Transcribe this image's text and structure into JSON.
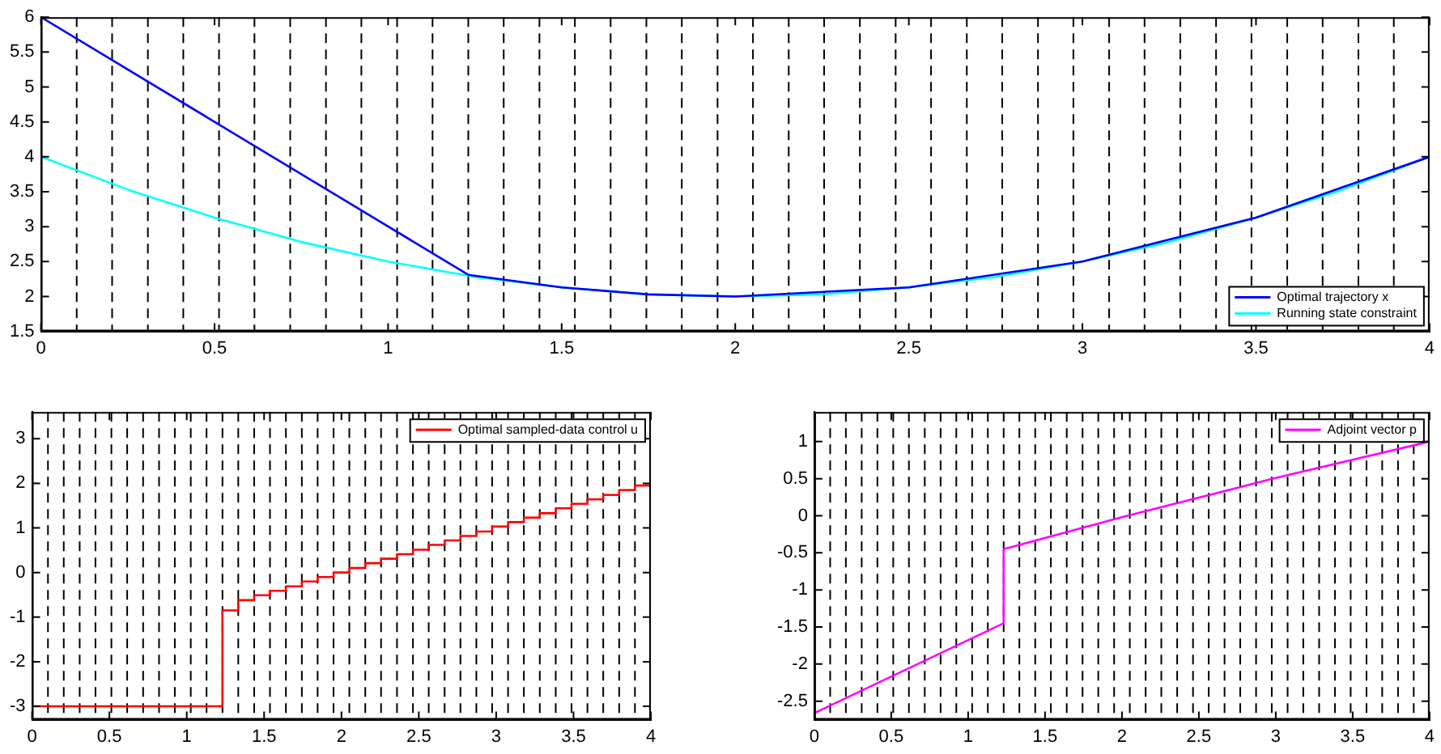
{
  "chart_data": [
    {
      "type": "line",
      "xlim": [
        0,
        4
      ],
      "ylim": [
        1.5,
        6
      ],
      "xticks": [
        0,
        0.5,
        1,
        1.5,
        2,
        2.5,
        3,
        3.5,
        4
      ],
      "yticks": [
        1.5,
        2,
        2.5,
        3,
        3.5,
        4,
        4.5,
        5,
        5.5,
        6
      ],
      "grid": false,
      "legend": "bottom right",
      "marker": "none",
      "line_style": "solid",
      "series": [
        {
          "name": "Optimal trajectory x",
          "color": "#0000ff",
          "x": [
            0,
            1.231,
            1.5,
            1.75,
            2,
            2.5,
            3,
            3.5,
            4
          ],
          "values": [
            6,
            2.31,
            2.13,
            2.03,
            2,
            2.13,
            2.5,
            3.13,
            4
          ]
        },
        {
          "name": "Running state constraint",
          "color": "#00ffff",
          "x": [
            0,
            0.25,
            0.5,
            0.75,
            1,
            1.25,
            1.5,
            1.75,
            2,
            2.25,
            2.5,
            2.75,
            3,
            3.25,
            3.5,
            3.75,
            4
          ],
          "values": [
            4,
            3.53,
            3.13,
            2.78,
            2.5,
            2.28,
            2.13,
            2.03,
            2,
            2.03,
            2.13,
            2.28,
            2.5,
            2.78,
            3.13,
            3.53,
            4
          ]
        }
      ],
      "ref_lines": [
        {
          "axis": "x",
          "value": 0.103,
          "line_style": "dashed"
        },
        {
          "axis": "x",
          "value": 0.205,
          "line_style": "dashed"
        },
        {
          "axis": "x",
          "value": 0.308,
          "line_style": "dashed"
        },
        {
          "axis": "x",
          "value": 0.41,
          "line_style": "dashed"
        },
        {
          "axis": "x",
          "value": 0.513,
          "line_style": "dashed"
        },
        {
          "axis": "x",
          "value": 0.615,
          "line_style": "dashed"
        },
        {
          "axis": "x",
          "value": 0.718,
          "line_style": "dashed"
        },
        {
          "axis": "x",
          "value": 0.821,
          "line_style": "dashed"
        },
        {
          "axis": "x",
          "value": 0.923,
          "line_style": "dashed"
        },
        {
          "axis": "x",
          "value": 1.026,
          "line_style": "dashed"
        },
        {
          "axis": "x",
          "value": 1.128,
          "line_style": "dashed"
        },
        {
          "axis": "x",
          "value": 1.231,
          "line_style": "dashed"
        },
        {
          "axis": "x",
          "value": 1.333,
          "line_style": "dashed"
        },
        {
          "axis": "x",
          "value": 1.436,
          "line_style": "dashed"
        },
        {
          "axis": "x",
          "value": 1.538,
          "line_style": "dashed"
        },
        {
          "axis": "x",
          "value": 1.641,
          "line_style": "dashed"
        },
        {
          "axis": "x",
          "value": 1.744,
          "line_style": "dashed"
        },
        {
          "axis": "x",
          "value": 1.846,
          "line_style": "dashed"
        },
        {
          "axis": "x",
          "value": 1.949,
          "line_style": "dashed"
        },
        {
          "axis": "x",
          "value": 2.051,
          "line_style": "dashed"
        },
        {
          "axis": "x",
          "value": 2.154,
          "line_style": "dashed"
        },
        {
          "axis": "x",
          "value": 2.256,
          "line_style": "dashed"
        },
        {
          "axis": "x",
          "value": 2.359,
          "line_style": "dashed"
        },
        {
          "axis": "x",
          "value": 2.462,
          "line_style": "dashed"
        },
        {
          "axis": "x",
          "value": 2.564,
          "line_style": "dashed"
        },
        {
          "axis": "x",
          "value": 2.667,
          "line_style": "dashed"
        },
        {
          "axis": "x",
          "value": 2.769,
          "line_style": "dashed"
        },
        {
          "axis": "x",
          "value": 2.872,
          "line_style": "dashed"
        },
        {
          "axis": "x",
          "value": 2.974,
          "line_style": "dashed"
        },
        {
          "axis": "x",
          "value": 3.077,
          "line_style": "dashed"
        },
        {
          "axis": "x",
          "value": 3.179,
          "line_style": "dashed"
        },
        {
          "axis": "x",
          "value": 3.282,
          "line_style": "dashed"
        },
        {
          "axis": "x",
          "value": 3.385,
          "line_style": "dashed"
        },
        {
          "axis": "x",
          "value": 3.487,
          "line_style": "dashed"
        },
        {
          "axis": "x",
          "value": 3.59,
          "line_style": "dashed"
        },
        {
          "axis": "x",
          "value": 3.692,
          "line_style": "dashed"
        },
        {
          "axis": "x",
          "value": 3.795,
          "line_style": "dashed"
        },
        {
          "axis": "x",
          "value": 3.897,
          "line_style": "dashed"
        }
      ]
    },
    {
      "type": "step",
      "xlim": [
        0,
        4
      ],
      "ylim": [
        -3.3,
        3.6
      ],
      "xticks": [
        0,
        0.5,
        1,
        1.5,
        2,
        2.5,
        3,
        3.5,
        4
      ],
      "yticks": [
        -3,
        -2,
        -1,
        0,
        1,
        2,
        3
      ],
      "grid": false,
      "legend": "top right",
      "marker": "none",
      "line_style": "solid",
      "series": [
        {
          "name": "Optimal sampled-data control u",
          "color": "#ff0000",
          "x": [
            0,
            1.231,
            1.333,
            1.436,
            1.538,
            1.641,
            1.744,
            1.846,
            1.949,
            2.051,
            2.154,
            2.256,
            2.359,
            2.462,
            2.564,
            2.667,
            2.769,
            2.872,
            2.974,
            3.077,
            3.179,
            3.282,
            3.385,
            3.487,
            3.59,
            3.692,
            3.795,
            3.897,
            4
          ],
          "values": [
            -3,
            -0.85,
            -0.62,
            -0.51,
            -0.41,
            -0.31,
            -0.2,
            -0.1,
            0,
            0.1,
            0.21,
            0.31,
            0.41,
            0.51,
            0.62,
            0.72,
            0.82,
            0.92,
            1.03,
            1.13,
            1.23,
            1.33,
            1.44,
            1.54,
            1.64,
            1.74,
            1.85,
            1.95,
            1.95
          ]
        }
      ],
      "ref_lines": [
        {
          "axis": "x",
          "value": 0.103,
          "line_style": "dashed"
        },
        {
          "axis": "x",
          "value": 0.205,
          "line_style": "dashed"
        },
        {
          "axis": "x",
          "value": 0.308,
          "line_style": "dashed"
        },
        {
          "axis": "x",
          "value": 0.41,
          "line_style": "dashed"
        },
        {
          "axis": "x",
          "value": 0.513,
          "line_style": "dashed"
        },
        {
          "axis": "x",
          "value": 0.615,
          "line_style": "dashed"
        },
        {
          "axis": "x",
          "value": 0.718,
          "line_style": "dashed"
        },
        {
          "axis": "x",
          "value": 0.821,
          "line_style": "dashed"
        },
        {
          "axis": "x",
          "value": 0.923,
          "line_style": "dashed"
        },
        {
          "axis": "x",
          "value": 1.026,
          "line_style": "dashed"
        },
        {
          "axis": "x",
          "value": 1.128,
          "line_style": "dashed"
        },
        {
          "axis": "x",
          "value": 1.231,
          "line_style": "dashed"
        },
        {
          "axis": "x",
          "value": 1.333,
          "line_style": "dashed"
        },
        {
          "axis": "x",
          "value": 1.436,
          "line_style": "dashed"
        },
        {
          "axis": "x",
          "value": 1.538,
          "line_style": "dashed"
        },
        {
          "axis": "x",
          "value": 1.641,
          "line_style": "dashed"
        },
        {
          "axis": "x",
          "value": 1.744,
          "line_style": "dashed"
        },
        {
          "axis": "x",
          "value": 1.846,
          "line_style": "dashed"
        },
        {
          "axis": "x",
          "value": 1.949,
          "line_style": "dashed"
        },
        {
          "axis": "x",
          "value": 2.051,
          "line_style": "dashed"
        },
        {
          "axis": "x",
          "value": 2.154,
          "line_style": "dashed"
        },
        {
          "axis": "x",
          "value": 2.256,
          "line_style": "dashed"
        },
        {
          "axis": "x",
          "value": 2.359,
          "line_style": "dashed"
        },
        {
          "axis": "x",
          "value": 2.462,
          "line_style": "dashed"
        },
        {
          "axis": "x",
          "value": 2.564,
          "line_style": "dashed"
        },
        {
          "axis": "x",
          "value": 2.667,
          "line_style": "dashed"
        },
        {
          "axis": "x",
          "value": 2.769,
          "line_style": "dashed"
        },
        {
          "axis": "x",
          "value": 2.872,
          "line_style": "dashed"
        },
        {
          "axis": "x",
          "value": 2.974,
          "line_style": "dashed"
        },
        {
          "axis": "x",
          "value": 3.077,
          "line_style": "dashed"
        },
        {
          "axis": "x",
          "value": 3.179,
          "line_style": "dashed"
        },
        {
          "axis": "x",
          "value": 3.282,
          "line_style": "dashed"
        },
        {
          "axis": "x",
          "value": 3.385,
          "line_style": "dashed"
        },
        {
          "axis": "x",
          "value": 3.487,
          "line_style": "dashed"
        },
        {
          "axis": "x",
          "value": 3.59,
          "line_style": "dashed"
        },
        {
          "axis": "x",
          "value": 3.692,
          "line_style": "dashed"
        },
        {
          "axis": "x",
          "value": 3.795,
          "line_style": "dashed"
        },
        {
          "axis": "x",
          "value": 3.897,
          "line_style": "dashed"
        }
      ]
    },
    {
      "type": "line",
      "xlim": [
        0,
        4
      ],
      "ylim": [
        -2.75,
        1.4
      ],
      "xticks": [
        0,
        0.5,
        1,
        1.5,
        2,
        2.5,
        3,
        3.5,
        4
      ],
      "yticks": [
        -2.5,
        -2,
        -1.5,
        -1,
        -0.5,
        0,
        0.5,
        1
      ],
      "grid": false,
      "legend": "top right",
      "marker": "none",
      "line_style": "solid",
      "series": [
        {
          "name": "Adjoint vector p",
          "color": "#ff00ff",
          "x": [
            0,
            1.231,
            1.231,
            2,
            3,
            4
          ],
          "values": [
            -2.66,
            -1.45,
            -0.45,
            -0.02,
            0.51,
            1
          ]
        }
      ],
      "ref_lines": [
        {
          "axis": "x",
          "value": 0.103,
          "line_style": "dashed"
        },
        {
          "axis": "x",
          "value": 0.205,
          "line_style": "dashed"
        },
        {
          "axis": "x",
          "value": 0.308,
          "line_style": "dashed"
        },
        {
          "axis": "x",
          "value": 0.41,
          "line_style": "dashed"
        },
        {
          "axis": "x",
          "value": 0.513,
          "line_style": "dashed"
        },
        {
          "axis": "x",
          "value": 0.615,
          "line_style": "dashed"
        },
        {
          "axis": "x",
          "value": 0.718,
          "line_style": "dashed"
        },
        {
          "axis": "x",
          "value": 0.821,
          "line_style": "dashed"
        },
        {
          "axis": "x",
          "value": 0.923,
          "line_style": "dashed"
        },
        {
          "axis": "x",
          "value": 1.026,
          "line_style": "dashed"
        },
        {
          "axis": "x",
          "value": 1.128,
          "line_style": "dashed"
        },
        {
          "axis": "x",
          "value": 1.231,
          "line_style": "dashed"
        },
        {
          "axis": "x",
          "value": 1.333,
          "line_style": "dashed"
        },
        {
          "axis": "x",
          "value": 1.436,
          "line_style": "dashed"
        },
        {
          "axis": "x",
          "value": 1.538,
          "line_style": "dashed"
        },
        {
          "axis": "x",
          "value": 1.641,
          "line_style": "dashed"
        },
        {
          "axis": "x",
          "value": 1.744,
          "line_style": "dashed"
        },
        {
          "axis": "x",
          "value": 1.846,
          "line_style": "dashed"
        },
        {
          "axis": "x",
          "value": 1.949,
          "line_style": "dashed"
        },
        {
          "axis": "x",
          "value": 2.051,
          "line_style": "dashed"
        },
        {
          "axis": "x",
          "value": 2.154,
          "line_style": "dashed"
        },
        {
          "axis": "x",
          "value": 2.256,
          "line_style": "dashed"
        },
        {
          "axis": "x",
          "value": 2.359,
          "line_style": "dashed"
        },
        {
          "axis": "x",
          "value": 2.462,
          "line_style": "dashed"
        },
        {
          "axis": "x",
          "value": 2.564,
          "line_style": "dashed"
        },
        {
          "axis": "x",
          "value": 2.667,
          "line_style": "dashed"
        },
        {
          "axis": "x",
          "value": 2.769,
          "line_style": "dashed"
        },
        {
          "axis": "x",
          "value": 2.872,
          "line_style": "dashed"
        },
        {
          "axis": "x",
          "value": 2.974,
          "line_style": "dashed"
        },
        {
          "axis": "x",
          "value": 3.077,
          "line_style": "dashed"
        },
        {
          "axis": "x",
          "value": 3.179,
          "line_style": "dashed"
        },
        {
          "axis": "x",
          "value": 3.282,
          "line_style": "dashed"
        },
        {
          "axis": "x",
          "value": 3.385,
          "line_style": "dashed"
        },
        {
          "axis": "x",
          "value": 3.487,
          "line_style": "dashed"
        },
        {
          "axis": "x",
          "value": 3.59,
          "line_style": "dashed"
        },
        {
          "axis": "x",
          "value": 3.692,
          "line_style": "dashed"
        },
        {
          "axis": "x",
          "value": 3.795,
          "line_style": "dashed"
        },
        {
          "axis": "x",
          "value": 3.897,
          "line_style": "dashed"
        }
      ]
    }
  ]
}
